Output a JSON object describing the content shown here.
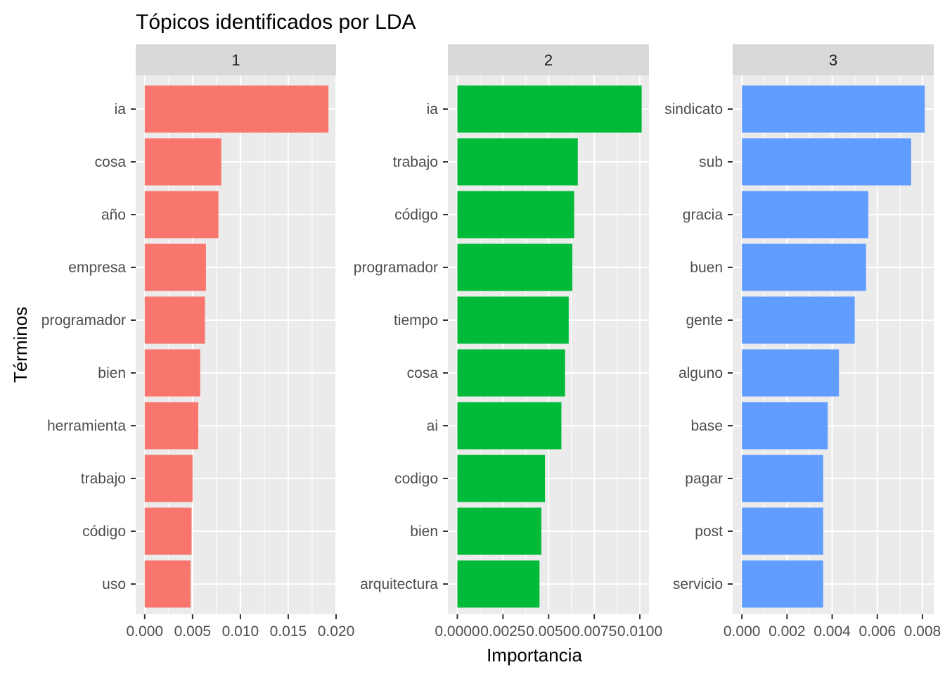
{
  "chart_data": {
    "type": "bar",
    "orientation": "horizontal",
    "title": "Tópicos identificados por LDA",
    "xlabel": "Importancia",
    "ylabel": "Términos",
    "grid": true,
    "legend": "none",
    "facets": [
      {
        "label": "1",
        "color": "#F8766D",
        "xlim": [
          -0.00094,
          0.02
        ],
        "ticks": [
          0,
          0.005,
          0.01,
          0.015,
          0.02
        ],
        "tick_labels": [
          "0.000",
          "0.005",
          "0.010",
          "0.015",
          "0.020"
        ],
        "categories": [
          "ia",
          "cosa",
          "año",
          "empresa",
          "programador",
          "bien",
          "herramienta",
          "trabajo",
          "código",
          "uso"
        ],
        "values": [
          0.0192,
          0.008,
          0.0077,
          0.0064,
          0.0063,
          0.0058,
          0.0056,
          0.005,
          0.0049,
          0.0048
        ]
      },
      {
        "label": "2",
        "color": "#00BA38",
        "xlim": [
          -0.00052,
          0.0105
        ],
        "ticks": [
          0,
          0.0025,
          0.005,
          0.0075,
          0.01
        ],
        "tick_labels": [
          "0.0000",
          "0.0025",
          "0.0050",
          "0.0075",
          "0.0100"
        ],
        "categories": [
          "ia",
          "trabajo",
          "código",
          "programador",
          "tiempo",
          "cosa",
          "ai",
          "codigo",
          "bien",
          "arquitectura"
        ],
        "values": [
          0.0101,
          0.0066,
          0.0064,
          0.0063,
          0.0061,
          0.0059,
          0.0057,
          0.0048,
          0.0046,
          0.0045
        ]
      },
      {
        "label": "3",
        "color": "#619CFF",
        "xlim": [
          -0.00041,
          0.0085
        ],
        "ticks": [
          0,
          0.002,
          0.004,
          0.006,
          0.008
        ],
        "tick_labels": [
          "0.000",
          "0.002",
          "0.004",
          "0.006",
          "0.008"
        ],
        "categories": [
          "sindicato",
          "sub",
          "gracia",
          "buen",
          "gente",
          "alguno",
          "base",
          "pagar",
          "post",
          "servicio"
        ],
        "values": [
          0.0081,
          0.0075,
          0.0056,
          0.0055,
          0.005,
          0.0043,
          0.0038,
          0.0036,
          0.0036,
          0.0036
        ]
      }
    ]
  }
}
